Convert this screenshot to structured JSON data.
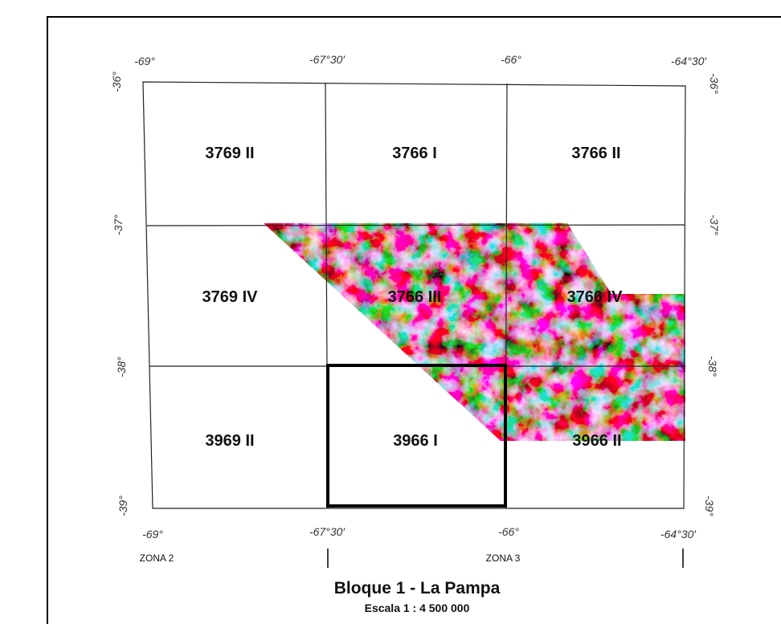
{
  "map": {
    "title": "Bloque 1 - La Pampa",
    "scale": "Escala 1 : 4 500 000",
    "zones": [
      "ZONA 2",
      "ZONA 3"
    ],
    "top_longitudes": [
      "-69°",
      "-67°30′",
      "-66°",
      "-64°30′"
    ],
    "bottom_longitudes": [
      "-69°",
      "-67°30′",
      "-66°",
      "-64°30′"
    ],
    "left_latitudes": [
      "-36°",
      "-37°",
      "-38°",
      "-39°"
    ],
    "right_latitudes": [
      "-36°",
      "-37°",
      "-38°",
      "-39°"
    ],
    "sheets": [
      {
        "id": "3769 II"
      },
      {
        "id": "3766 I"
      },
      {
        "id": "3766 II"
      },
      {
        "id": "3769 IV"
      },
      {
        "id": "3766 III"
      },
      {
        "id": "3766 IV"
      },
      {
        "id": "3969 II"
      },
      {
        "id": "3966 I"
      },
      {
        "id": "3966 II"
      }
    ],
    "highlighted_sheet": "3966 I",
    "colors": {
      "survey_palette": [
        "#ff2ad4",
        "#9b2cff",
        "#2b6bff",
        "#16c8ff",
        "#35e06b",
        "#f4f230",
        "#ff9a1f",
        "#ff3b2a"
      ]
    }
  }
}
